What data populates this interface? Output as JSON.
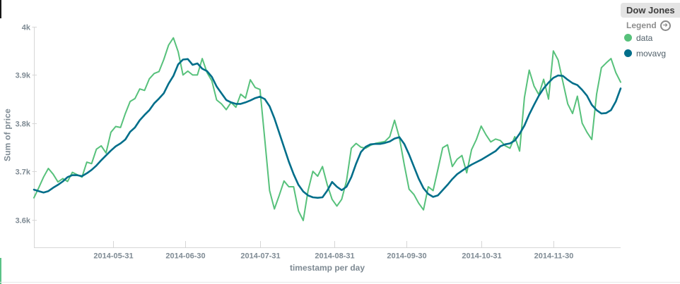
{
  "panel": {
    "title": "Dow Jones"
  },
  "legend": {
    "label": "Legend",
    "items": [
      {
        "label": "data",
        "color": "#57c17b"
      },
      {
        "label": "movavg",
        "color": "#006e8a"
      }
    ]
  },
  "axes": {
    "y_title": "Sum of price",
    "x_title": "timestamp per day"
  },
  "colors": {
    "axis_line": "#d6d6d6",
    "tick_text": "#7e8a93",
    "title_chip_bg": "#e4e4e4",
    "data_series": "#57c17b",
    "movavg_series": "#006e8a"
  },
  "chart_data": {
    "type": "line",
    "title": "Dow Jones",
    "xlabel": "timestamp per day",
    "ylabel": "Sum of price",
    "grid": false,
    "legend_position": "right",
    "x_start_date": "2014-04-28",
    "x_end_date": "2014-12-26",
    "x_interval_days": 2,
    "x_total_days": 244,
    "ylim": [
      3543,
      4000
    ],
    "y_ticks": [
      {
        "label": "4k",
        "value": 4000
      },
      {
        "label": "3.9k",
        "value": 3900
      },
      {
        "label": "3.8k",
        "value": 3800
      },
      {
        "label": "3.7k",
        "value": 3700
      },
      {
        "label": "3.6k",
        "value": 3600
      }
    ],
    "x_ticks": [
      {
        "label": "2014-05-31",
        "day": 33
      },
      {
        "label": "2014-06-30",
        "day": 63
      },
      {
        "label": "2014-07-31",
        "day": 94
      },
      {
        "label": "2014-08-31",
        "day": 125
      },
      {
        "label": "2014-09-30",
        "day": 155
      },
      {
        "label": "2014-10-31",
        "day": 186
      },
      {
        "label": "2014-11-30",
        "day": 216
      }
    ],
    "series": [
      {
        "name": "data",
        "color": "#57c17b",
        "width": 2,
        "values": [
          3645,
          3666,
          3688,
          3706,
          3694,
          3678,
          3685,
          3679,
          3698,
          3693,
          3688,
          3719,
          3716,
          3746,
          3753,
          3738,
          3781,
          3793,
          3791,
          3820,
          3845,
          3851,
          3871,
          3868,
          3892,
          3903,
          3907,
          3932,
          3962,
          3977,
          3948,
          3900,
          3908,
          3900,
          3900,
          3934,
          3905,
          3888,
          3848,
          3840,
          3828,
          3843,
          3833,
          3860,
          3852,
          3890,
          3874,
          3870,
          3766,
          3660,
          3622,
          3650,
          3680,
          3668,
          3668,
          3618,
          3598,
          3660,
          3700,
          3690,
          3710,
          3672,
          3642,
          3628,
          3642,
          3680,
          3748,
          3758,
          3750,
          3748,
          3754,
          3758,
          3760,
          3762,
          3772,
          3806,
          3770,
          3714,
          3663,
          3652,
          3634,
          3620,
          3668,
          3660,
          3704,
          3749,
          3755,
          3710,
          3725,
          3733,
          3697,
          3745,
          3766,
          3794,
          3776,
          3761,
          3767,
          3764,
          3753,
          3748,
          3772,
          3742,
          3853,
          3910,
          3877,
          3859,
          3891,
          3850,
          3950,
          3931,
          3885,
          3840,
          3820,
          3856,
          3800,
          3781,
          3766,
          3860,
          3915,
          3925,
          3934,
          3905,
          3885
        ]
      },
      {
        "name": "movavg",
        "color": "#006e8a",
        "width": 2.6,
        "values": [
          3662,
          3659,
          3656,
          3659,
          3666,
          3672,
          3679,
          3688,
          3692,
          3692,
          3690,
          3696,
          3703,
          3712,
          3723,
          3733,
          3743,
          3752,
          3758,
          3766,
          3782,
          3791,
          3806,
          3817,
          3827,
          3841,
          3851,
          3862,
          3882,
          3898,
          3922,
          3932,
          3933,
          3921,
          3924,
          3913,
          3908,
          3896,
          3876,
          3862,
          3848,
          3843,
          3840,
          3840,
          3843,
          3847,
          3852,
          3855,
          3850,
          3835,
          3810,
          3780,
          3750,
          3720,
          3694,
          3672,
          3658,
          3650,
          3646,
          3645,
          3646,
          3660,
          3678,
          3668,
          3661,
          3668,
          3688,
          3716,
          3740,
          3751,
          3756,
          3757,
          3757,
          3759,
          3762,
          3768,
          3771,
          3757,
          3735,
          3710,
          3685,
          3665,
          3653,
          3647,
          3650,
          3661,
          3672,
          3684,
          3694,
          3701,
          3708,
          3714,
          3719,
          3724,
          3730,
          3736,
          3742,
          3752,
          3756,
          3758,
          3764,
          3778,
          3795,
          3818,
          3838,
          3857,
          3872,
          3884,
          3894,
          3899,
          3898,
          3890,
          3883,
          3879,
          3869,
          3857,
          3838,
          3827,
          3820,
          3821,
          3827,
          3845,
          3872
        ]
      }
    ]
  }
}
